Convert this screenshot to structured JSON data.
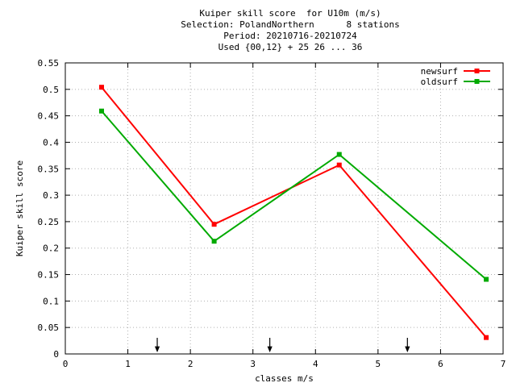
{
  "chart_data": {
    "type": "line",
    "title_lines": [
      "Kuiper skill score  for U10m (m/s)",
      "Selection: PolandNorthern      8 stations",
      "Period: 20210716-20210724",
      "Used {00,12} + 25 26 ... 36"
    ],
    "xlabel": "classes m/s",
    "ylabel": "Kuiper skill score",
    "xlim": [
      0,
      7
    ],
    "ylim": [
      0,
      0.55
    ],
    "xticks": [
      0,
      1,
      2,
      3,
      4,
      5,
      6,
      7
    ],
    "xtick_labels": [
      "0",
      "1",
      "2",
      "3",
      "4",
      "5",
      "6",
      "7"
    ],
    "yticks": [
      0,
      0.05,
      0.1,
      0.15,
      0.2,
      0.25,
      0.3,
      0.35,
      0.4,
      0.45,
      0.5,
      0.55
    ],
    "ytick_labels": [
      "0",
      "0.05",
      "0.1",
      "0.15",
      "0.2",
      "0.25",
      "0.3",
      "0.35",
      "0.4",
      "0.45",
      "0.5",
      "0.55"
    ],
    "grid": true,
    "legend_position": "top-right",
    "series": [
      {
        "name": "newsurf",
        "color": "#ff0000",
        "x": [
          0.58,
          2.38,
          4.38,
          6.73
        ],
        "y": [
          0.504,
          0.245,
          0.357,
          0.031
        ]
      },
      {
        "name": "oldsurf",
        "color": "#00aa00",
        "x": [
          0.58,
          2.38,
          4.38,
          6.73
        ],
        "y": [
          0.459,
          0.213,
          0.377,
          0.141
        ]
      }
    ],
    "threshold_arrows_x": [
      1.47,
      3.27,
      5.47
    ]
  }
}
